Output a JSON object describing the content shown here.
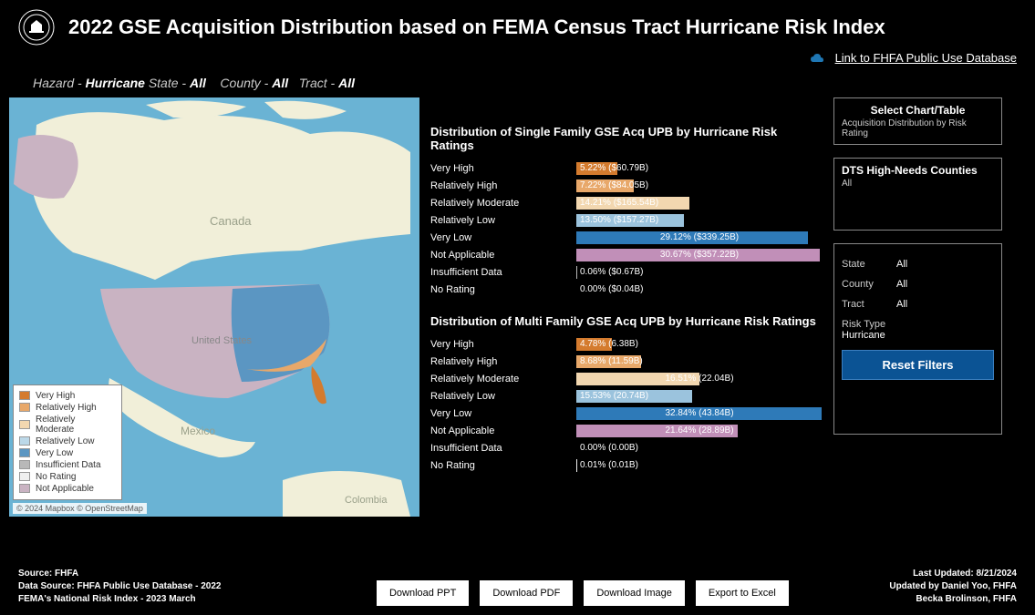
{
  "header": {
    "title": "2022 GSE Acquisition Distribution based on FEMA Census Tract Hurricane Risk Index",
    "link_label": "Link to FHFA Public Use Database"
  },
  "breadcrumb": {
    "hazard_label": "Hazard  -",
    "hazard_value": "Hurricane",
    "state_label": "State -",
    "state_value": "All",
    "county_label": "County -",
    "county_value": "All",
    "tract_label": "Tract -",
    "tract_value": "All"
  },
  "map": {
    "labels": {
      "canada": "Canada",
      "us": "United States",
      "mexico": "Mexico",
      "colombia": "Colombia"
    },
    "colors": {
      "ocean": "#6ab3d4",
      "canada": "#f1efd9",
      "mexico": "#f1efd9",
      "us_low": "#d9e8f2",
      "us_notapp": "#c9b3c2",
      "gulf": "#e8a86a",
      "florida": "#d47b2e"
    },
    "attribution": "© 2024 Mapbox © OpenStreetMap",
    "legend": [
      {
        "label": "Very High",
        "color": "#d47b2e"
      },
      {
        "label": "Relatively High",
        "color": "#e8a86a"
      },
      {
        "label": "Relatively Moderate",
        "color": "#f2d7b0"
      },
      {
        "label": "Relatively Low",
        "color": "#bcd8e8"
      },
      {
        "label": "Very Low",
        "color": "#5b96c2"
      },
      {
        "label": "Insufficient Data",
        "color": "#b8b8b8"
      },
      {
        "label": "No Rating",
        "color": "#f0f0f0"
      },
      {
        "label": "Not Applicable",
        "color": "#c9b3c2"
      }
    ]
  },
  "chart1": {
    "title": "Distribution of Single Family GSE Acq UPB by Hurricane Risk Ratings",
    "max_pct": 31,
    "rows": [
      {
        "label": "Very High",
        "pct": 5.22,
        "text": "5.22% ($60.79B)",
        "color": "#d47b2e"
      },
      {
        "label": "Relatively High",
        "pct": 7.22,
        "text": "7.22% ($84.05B)",
        "color": "#e8a86a"
      },
      {
        "label": "Relatively Moderate",
        "pct": 14.21,
        "text": "14.21% ($165.54B)",
        "color": "#f2d7b0"
      },
      {
        "label": "Relatively Low",
        "pct": 13.5,
        "text": "13.50% ($157.27B)",
        "color": "#9bc3dd"
      },
      {
        "label": "Very Low",
        "pct": 29.12,
        "text": "29.12% ($339.25B)",
        "color": "#2e7ab8"
      },
      {
        "label": "Not Applicable",
        "pct": 30.67,
        "text": "30.67% ($357.22B)",
        "color": "#c18fb8"
      },
      {
        "label": "Insufficient Data",
        "pct": 0.06,
        "text": "0.06% ($0.67B)",
        "color": "#b8b8b8"
      },
      {
        "label": "No Rating",
        "pct": 0.0,
        "text": "0.00% ($0.04B)",
        "color": "#f0f0f0"
      }
    ]
  },
  "chart2": {
    "title": "Distribution of Multi Family GSE Acq UPB by Hurricane Risk Ratings",
    "max_pct": 33,
    "rows": [
      {
        "label": "Very High",
        "pct": 4.78,
        "text": "4.78% (6.38B)",
        "color": "#d47b2e"
      },
      {
        "label": "Relatively High",
        "pct": 8.68,
        "text": "8.68% (11.59B)",
        "color": "#e8a86a"
      },
      {
        "label": "Relatively Moderate",
        "pct": 16.51,
        "text": "16.51% (22.04B)",
        "color": "#f2d7b0"
      },
      {
        "label": "Relatively Low",
        "pct": 15.53,
        "text": "15.53% (20.74B)",
        "color": "#9bc3dd"
      },
      {
        "label": "Very Low",
        "pct": 32.84,
        "text": "32.84% (43.84B)",
        "color": "#2e7ab8"
      },
      {
        "label": "Not Applicable",
        "pct": 21.64,
        "text": "21.64% (28.89B)",
        "color": "#c18fb8"
      },
      {
        "label": "Insufficient Data",
        "pct": 0.0,
        "text": "0.00% (0.00B)",
        "color": "#b8b8b8"
      },
      {
        "label": "No Rating",
        "pct": 0.01,
        "text": "0.01% (0.01B)",
        "color": "#f0f0f0"
      }
    ]
  },
  "side": {
    "panel1_title": "Select Chart/Table",
    "panel1_sub": "Acquisition Distribution by Risk Rating",
    "panel2_title": "DTS High-Needs Counties",
    "panel2_sub": "All",
    "filters": {
      "state_label": "State",
      "state_value": "All",
      "county_label": "County",
      "county_value": "All",
      "tract_label": "Tract",
      "tract_value": "All",
      "risk_label": "Risk Type",
      "risk_value": "Hurricane"
    },
    "reset_label": "Reset Filters"
  },
  "footer": {
    "source1": "Source:  FHFA",
    "source2": "Data Source: FHFA Public Use Database -  2022",
    "source3": "FEMA's National Risk Index - 2023 March",
    "btn_ppt": "Download PPT",
    "btn_pdf": "Download PDF",
    "btn_img": "Download Image",
    "btn_xls": "Export to Excel",
    "updated1": "Last Updated: 8/21/2024",
    "updated2": "Updated by Daniel Yoo, FHFA",
    "updated3": "Becka Brolinson, FHFA"
  }
}
